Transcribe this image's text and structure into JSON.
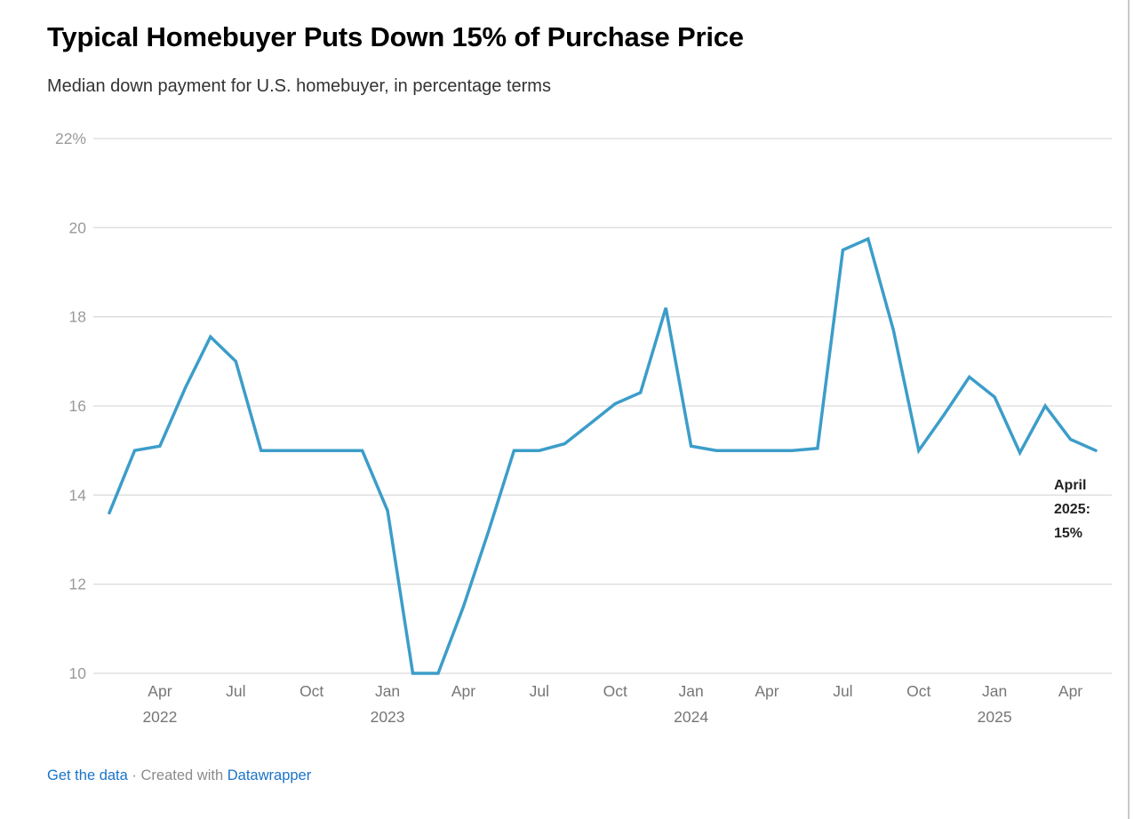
{
  "header": {
    "title": "Typical Homebuyer Puts Down 15% of Purchase Price",
    "subtitle": "Median down payment for U.S. homebuyer, in percentage terms"
  },
  "annotation": {
    "text": "April 2025: 15%"
  },
  "footer": {
    "get_data_label": "Get the data",
    "separator": "·",
    "created_with": "Created with",
    "brand": "Datawrapper"
  },
  "colors": {
    "line": "#3c9dc9",
    "grid": "#dcdcdc",
    "y_tick": "#9a9a9a",
    "x_tick": "#767676",
    "title": "#000000",
    "subtitle": "#333333",
    "link_blue": "#1a73c8",
    "annotation_text": "#222222",
    "edge_line": "#c9c9c9"
  },
  "chart_data": {
    "type": "line",
    "title": "Typical Homebuyer Puts Down 15% of Purchase Price",
    "subtitle": "Median down payment for U.S. homebuyer, in percentage terms",
    "unit": "percent",
    "grid": "horizontal",
    "legend_position": "none",
    "ylim": [
      10,
      22
    ],
    "x": [
      "Jan 2022",
      "Feb 2022",
      "Mar 2022",
      "Apr 2022",
      "May 2022",
      "Jun 2022",
      "Jul 2022",
      "Aug 2022",
      "Sep 2022",
      "Oct 2022",
      "Nov 2022",
      "Dec 2022",
      "Jan 2023",
      "Feb 2023",
      "Mar 2023",
      "Apr 2023",
      "May 2023",
      "Jun 2023",
      "Jul 2023",
      "Aug 2023",
      "Sep 2023",
      "Oct 2023",
      "Nov 2023",
      "Dec 2023",
      "Jan 2024",
      "Feb 2024",
      "Mar 2024",
      "Apr 2024",
      "May 2024",
      "Jun 2024",
      "Jul 2024",
      "Aug 2024",
      "Sep 2024",
      "Oct 2024",
      "Nov 2024",
      "Dec 2024",
      "Jan 2025",
      "Feb 2025",
      "Mar 2025",
      "Apr 2025"
    ],
    "values": [
      13.6,
      15.0,
      15.1,
      16.4,
      17.55,
      17.0,
      15.0,
      15.0,
      15.0,
      15.0,
      15.0,
      13.65,
      10.0,
      10.0,
      11.5,
      13.2,
      15.0,
      15.0,
      15.15,
      15.6,
      16.05,
      16.3,
      18.2,
      15.1,
      15.0,
      15.0,
      15.0,
      15.0,
      15.05,
      19.5,
      19.75,
      17.7,
      15.0,
      15.8,
      16.65,
      16.2,
      14.95,
      16.0,
      15.25,
      15.0
    ],
    "yticks": [
      {
        "value": 22,
        "label": "22%"
      },
      {
        "value": 20,
        "label": "20"
      },
      {
        "value": 18,
        "label": "18"
      },
      {
        "value": 16,
        "label": "16"
      },
      {
        "value": 14,
        "label": "14"
      },
      {
        "value": 12,
        "label": "12"
      },
      {
        "value": 10,
        "label": "10"
      }
    ],
    "xticks": [
      {
        "t": 2,
        "label": "Apr",
        "year": "2022"
      },
      {
        "t": 5,
        "label": "Jul"
      },
      {
        "t": 8,
        "label": "Oct"
      },
      {
        "t": 11,
        "label": "Jan",
        "year": "2023"
      },
      {
        "t": 14,
        "label": "Apr"
      },
      {
        "t": 17,
        "label": "Jul"
      },
      {
        "t": 20,
        "label": "Oct"
      },
      {
        "t": 23,
        "label": "Jan",
        "year": "2024"
      },
      {
        "t": 26,
        "label": "Apr"
      },
      {
        "t": 29,
        "label": "Jul"
      },
      {
        "t": 32,
        "label": "Oct"
      },
      {
        "t": 35,
        "label": "Jan",
        "year": "2025"
      },
      {
        "t": 38,
        "label": "Apr"
      }
    ],
    "annotation": "April 2025: 15%"
  }
}
